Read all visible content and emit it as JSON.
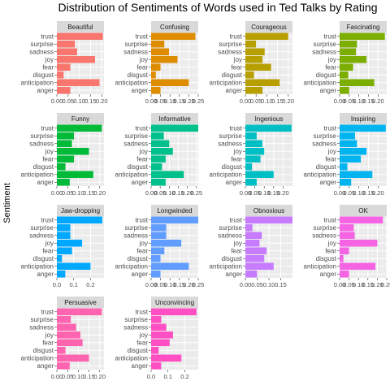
{
  "chart_data": {
    "type": "bar",
    "orientation": "horizontal",
    "title": "Distribution of Sentiments of Words used in Ted Talks by Rating",
    "ylabel": "Sentiment",
    "xlabel": "",
    "categories": [
      "anger",
      "anticipation",
      "disgust",
      "fear",
      "joy",
      "sadness",
      "surprise",
      "trust"
    ],
    "grid": true,
    "facet_columns": 4,
    "panels": [
      {
        "name": "Beautiful",
        "color": "#F8766D",
        "xlim": [
          0,
          0.21
        ],
        "xticks": [
          0,
          0.05,
          0.1,
          0.15,
          0.2
        ],
        "xtick_labels": [
          "0.00",
          "0.05",
          "0.10",
          "0.15",
          "0.20"
        ],
        "values": [
          0.06,
          0.19,
          0.03,
          0.06,
          0.17,
          0.09,
          0.08,
          0.205
        ]
      },
      {
        "name": "Confusing",
        "color": "#DE8C00",
        "xlim": [
          0,
          0.25
        ],
        "xticks": [
          0,
          0.05,
          0.1,
          0.15,
          0.2,
          0.25
        ],
        "xtick_labels": [
          "0.00",
          "0.05",
          "0.10",
          "0.15",
          "0.20",
          "0.25"
        ],
        "values": [
          0.05,
          0.2,
          0.025,
          0.05,
          0.14,
          0.095,
          0.07,
          0.235
        ]
      },
      {
        "name": "Courageous",
        "color": "#B79F00",
        "xlim": [
          0,
          0.22
        ],
        "xticks": [
          0,
          0.05,
          0.1,
          0.15,
          0.2
        ],
        "xtick_labels": [
          "0.00",
          "0.05",
          "0.10",
          "0.15",
          "0.20"
        ],
        "values": [
          0.08,
          0.16,
          0.04,
          0.12,
          0.08,
          0.09,
          0.05,
          0.2
        ]
      },
      {
        "name": "Fascinating",
        "color": "#7CAE00",
        "xlim": [
          0,
          0.245
        ],
        "xticks": [
          0,
          0.05,
          0.1,
          0.15,
          0.2
        ],
        "xtick_labels": [
          "0.00",
          "0.05",
          "0.10",
          "0.15",
          "0.20"
        ],
        "values": [
          0.05,
          0.18,
          0.045,
          0.07,
          0.14,
          0.085,
          0.09,
          0.235
        ]
      },
      {
        "name": "Funny",
        "color": "#00BA38",
        "xlim": [
          0,
          0.22
        ],
        "xticks": [
          0,
          0.05,
          0.1,
          0.15,
          0.2
        ],
        "xtick_labels": [
          "0.00",
          "0.05",
          "0.10",
          "0.15",
          "0.20"
        ],
        "values": [
          0.06,
          0.17,
          0.04,
          0.08,
          0.15,
          0.07,
          0.08,
          0.21
        ]
      },
      {
        "name": "Informative",
        "color": "#00C08B",
        "xlim": [
          0,
          0.26
        ],
        "xticks": [
          0,
          0.05,
          0.1,
          0.15,
          0.2,
          0.25
        ],
        "xtick_labels": [
          "0.00",
          "0.05",
          "0.10",
          "0.15",
          "0.20",
          "0.25"
        ],
        "values": [
          0.08,
          0.18,
          0.06,
          0.08,
          0.12,
          0.1,
          0.07,
          0.26
        ]
      },
      {
        "name": "Ingenious",
        "color": "#00BFC4",
        "xlim": [
          0,
          0.25
        ],
        "xticks": [
          0,
          0.05,
          0.1,
          0.15,
          0.2
        ],
        "xtick_labels": [
          "0.00",
          "0.05",
          "0.10",
          "0.15",
          "0.20"
        ],
        "values": [
          0.06,
          0.15,
          0.035,
          0.08,
          0.1,
          0.09,
          0.06,
          0.245
        ]
      },
      {
        "name": "Inspiring",
        "color": "#00B4F0",
        "xlim": [
          0,
          0.245
        ],
        "xticks": [
          0,
          0.05,
          0.1,
          0.15,
          0.2
        ],
        "xtick_labels": [
          "0.00",
          "0.05",
          "0.10",
          "0.15",
          "0.20"
        ],
        "values": [
          0.06,
          0.17,
          0.04,
          0.11,
          0.14,
          0.09,
          0.08,
          0.24
        ]
      },
      {
        "name": "Jaw-dropping",
        "color": "#00A9FF",
        "xlim": [
          0,
          0.28
        ],
        "xticks": [
          0,
          0.1,
          0.2
        ],
        "xtick_labels": [
          "0.0",
          "0.1",
          "0.2"
        ],
        "values": [
          0.05,
          0.2,
          0.03,
          0.09,
          0.15,
          0.08,
          0.08,
          0.27
        ]
      },
      {
        "name": "Longwinded",
        "color": "#619CFF",
        "xlim": [
          0,
          0.25
        ],
        "xticks": [
          0,
          0.05,
          0.1,
          0.15,
          0.2,
          0.25
        ],
        "xtick_labels": [
          "0.00",
          "0.05",
          "0.10",
          "0.15",
          "0.20",
          "0.25"
        ],
        "values": [
          0.05,
          0.2,
          0.05,
          0.07,
          0.16,
          0.08,
          0.08,
          0.25
        ]
      },
      {
        "name": "Obnoxious",
        "color": "#C77CFF",
        "xlim": [
          0,
          0.2
        ],
        "xticks": [
          0,
          0.05,
          0.1,
          0.15
        ],
        "xtick_labels": [
          "0.00",
          "0.05",
          "0.10",
          "0.15"
        ],
        "values": [
          0.05,
          0.12,
          0.08,
          0.09,
          0.06,
          0.07,
          0.03,
          0.2
        ]
      },
      {
        "name": "OK",
        "color": "#F564E3",
        "xlim": [
          0,
          0.25
        ],
        "xticks": [
          0,
          0.05,
          0.1,
          0.15,
          0.2,
          0.25
        ],
        "xtick_labels": [
          "0.00",
          "0.05",
          "0.10",
          "0.15",
          "0.20",
          "0.25"
        ],
        "values": [
          0.05,
          0.19,
          0.02,
          0.05,
          0.2,
          0.08,
          0.075,
          0.23
        ]
      },
      {
        "name": "Persuasive",
        "color": "#FF64B0",
        "xlim": [
          0,
          0.22
        ],
        "xticks": [
          0,
          0.05,
          0.1,
          0.15,
          0.2
        ],
        "xtick_labels": [
          "0.00",
          "0.05",
          "0.10",
          "0.15",
          "0.20"
        ],
        "values": [
          0.06,
          0.15,
          0.04,
          0.12,
          0.11,
          0.09,
          0.065,
          0.21
        ]
      },
      {
        "name": "Unconvincing",
        "color": "#FF4FC2",
        "xlim": [
          0,
          0.28
        ],
        "xticks": [
          0,
          0.1,
          0.2
        ],
        "xtick_labels": [
          "0.0",
          "0.1",
          "0.2"
        ],
        "values": [
          0.06,
          0.18,
          0.045,
          0.11,
          0.13,
          0.09,
          0.06,
          0.27
        ]
      }
    ]
  }
}
